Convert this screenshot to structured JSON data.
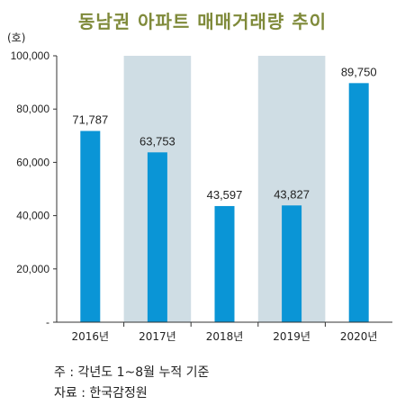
{
  "colors": {
    "title": "#7f8a3a",
    "bar": "#0a95d6",
    "band": "#cfdde4",
    "axis": "#333333",
    "text": "#222222"
  },
  "chart_data": {
    "type": "bar",
    "title": "동남권 아파트 매매거래량 추이",
    "ylabel": "(호)",
    "categories": [
      "2016년",
      "2017년",
      "2018년",
      "2019년",
      "2020년"
    ],
    "values": [
      71787,
      63753,
      43597,
      43827,
      89750
    ],
    "value_labels": [
      "71,787",
      "63,753",
      "43,597",
      "43,827",
      "89,750"
    ],
    "ylim": [
      0,
      100000
    ],
    "yticks": [
      0,
      20000,
      40000,
      60000,
      80000,
      100000
    ],
    "ytick_labels": [
      "-",
      "20,000",
      "40,000",
      "60,000",
      "80,000",
      "100,000"
    ],
    "shaded_categories": [
      "2017년",
      "2019년"
    ],
    "grid": false,
    "legend": "none"
  },
  "notes": {
    "line1": "주 : 각년도 1~8월 누적 기준",
    "line2": "자료 : 한국감정원"
  }
}
